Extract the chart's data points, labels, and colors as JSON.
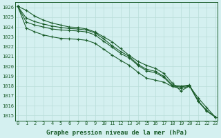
{
  "xlabel": "Graphe pression niveau de la mer (hPa)",
  "background_color": "#d4f0f0",
  "grid_color": "#b8ddd8",
  "line_color": "#1a5c2a",
  "text_color": "#1a5c2a",
  "ylim": [
    1014.5,
    1026.5
  ],
  "xlim": [
    -0.3,
    23.3
  ],
  "yticks": [
    1015,
    1016,
    1017,
    1018,
    1019,
    1020,
    1021,
    1022,
    1023,
    1024,
    1025,
    1026
  ],
  "xticks": [
    0,
    1,
    2,
    3,
    4,
    5,
    6,
    7,
    8,
    9,
    10,
    11,
    12,
    13,
    14,
    15,
    16,
    17,
    18,
    19,
    20,
    21,
    22,
    23
  ],
  "series": [
    [
      1026.1,
      1025.7,
      1025.1,
      1024.7,
      1024.4,
      1024.2,
      1024.0,
      1023.95,
      1023.8,
      1023.5,
      1023.0,
      1022.5,
      1021.8,
      1021.1,
      1020.5,
      1020.1,
      1019.8,
      1019.3,
      1018.3,
      1017.5,
      1018.0,
      1016.8,
      1015.8,
      1014.85
    ],
    [
      1026.1,
      1024.9,
      1024.55,
      1024.3,
      1024.1,
      1023.95,
      1023.85,
      1023.8,
      1023.7,
      1023.4,
      1022.8,
      1022.1,
      1021.5,
      1021.0,
      1020.2,
      1019.7,
      1019.5,
      1019.0,
      1018.1,
      1018.0,
      1018.1,
      1016.5,
      1015.5,
      1014.85
    ],
    [
      1026.1,
      1024.5,
      1024.2,
      1024.0,
      1023.8,
      1023.7,
      1023.65,
      1023.6,
      1023.5,
      1023.2,
      1022.55,
      1021.95,
      1021.3,
      1020.85,
      1020.1,
      1019.55,
      1019.35,
      1018.9,
      1018.0,
      1017.9,
      1018.05,
      1016.5,
      1015.5,
      1014.85
    ],
    [
      1026.1,
      1023.9,
      1023.5,
      1023.2,
      1023.0,
      1022.85,
      1022.8,
      1022.75,
      1022.65,
      1022.35,
      1021.75,
      1021.15,
      1020.6,
      1020.1,
      1019.4,
      1018.8,
      1018.6,
      1018.4,
      1017.95,
      1017.75,
      1018.0,
      1016.45,
      1015.45,
      1014.85
    ]
  ],
  "marker": "+",
  "markersize": 3.5,
  "linewidth": 0.8,
  "xlabel_fontsize": 6.5,
  "tick_fontsize": 5.0
}
